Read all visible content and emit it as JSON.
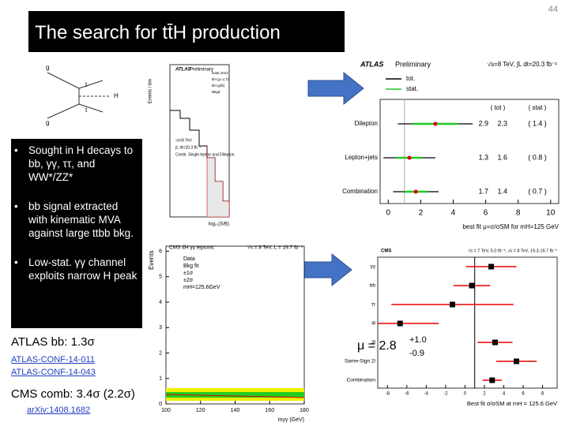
{
  "page_number": "44",
  "title": "The search for tt̄H production",
  "bullets": [
    "Sought in H decays to bb, γγ, ττ, and WW*/ZZ*",
    "bb signal extracted with kinematic MVA against large ttbb bkg.",
    "Low-stat. γγ channel exploits narrow H peak"
  ],
  "atlas_summary": {
    "label": "ATLAS bb: 1.3σ",
    "links": [
      "ATLAS-CONF-14-011",
      "ATLAS-CONF-14-043"
    ]
  },
  "cms_summary": {
    "label": "CMS comb: 3.4σ (2.2σ)",
    "link": "arXiv:1408.1682"
  },
  "mu": {
    "text": "μ = 2.8",
    "plus": "+1.0",
    "minus": "-0.9"
  },
  "feynman": {
    "labels": [
      "g",
      "g",
      "t",
      "H",
      "t"
    ]
  },
  "atlas_hist": {
    "brand": "ATLAS",
    "status": "Preliminary",
    "ylabel": "Events / bin",
    "legend": [
      "Data 2012",
      "tt̄H (μ=1.7)",
      "tt̄H (μfit)",
      "Bkgd"
    ],
    "notes": [
      "√s=8 TeV",
      "∫L dt=20.3 fb⁻¹",
      "Comb. Single lepton and Dilepton"
    ],
    "xlabel": "log₁₀(S/B)"
  },
  "cms_hist": {
    "title": "CMS tt̄H γγ leptonic",
    "energy": "√s = 8 TeV, L = 19.7 fb⁻¹",
    "ylabel": "Events",
    "legend": [
      "Data",
      "Bkg fit",
      "±1σ",
      "±2σ",
      "mH=125.6GeV"
    ],
    "xlabel": "mγγ (GeV)",
    "xlim": [
      100,
      180
    ],
    "xticks": [
      100,
      120,
      140,
      160,
      180
    ],
    "ylim": [
      0,
      6.2
    ],
    "yticks": [
      0,
      1,
      2,
      3,
      4,
      5,
      6
    ]
  },
  "atlas_plot": {
    "brand": "ATLAS",
    "status": "Preliminary",
    "energy": "√s=8 TeV, ∫L dt=20.3 fb⁻¹",
    "legend": [
      "tot.",
      "stat."
    ],
    "columns": [
      "( tot )",
      "( stat )"
    ],
    "rows": [
      {
        "name": "Dilepton",
        "mu": 2.9,
        "tot": 2.3,
        "stat": 1.4,
        "mu_label": "2.9",
        "tot_label": "2.3",
        "stat_label": "( 1.4 )"
      },
      {
        "name": "Lepton+jets",
        "mu": 1.3,
        "tot": 1.6,
        "stat": 0.8,
        "mu_label": "1.3",
        "tot_label": "1.6",
        "stat_label": "( 0.8 )"
      },
      {
        "name": "Combination",
        "mu": 1.7,
        "tot": 1.4,
        "stat": 0.7,
        "mu_label": "1.7",
        "tot_label": "1.4",
        "stat_label": "( 0.7 )"
      }
    ],
    "xlim": [
      -0.5,
      10.5
    ],
    "xticks": [
      0,
      2,
      4,
      6,
      8,
      10
    ],
    "xlabel": "best fit μ=σ/σSM for mH=125 GeV"
  },
  "cms_plot": {
    "brand": "CMS",
    "energy": "√s = 7 TeV, 5.0 fb⁻¹; √s = 8 TeV, 19.3-19.7 fb⁻¹",
    "rows": [
      {
        "name": "γγ",
        "mu": 2.7,
        "err": 2.6
      },
      {
        "name": "bb",
        "mu": 0.7,
        "err": 1.9
      },
      {
        "name": "ττ",
        "mu": -1.3,
        "err": 6.3
      },
      {
        "name": "4l",
        "mu": -6.7,
        "err": 4.0
      },
      {
        "name": "3l",
        "mu": 3.1,
        "err": 1.8
      },
      {
        "name": "Same-Sign 2l",
        "mu": 5.3,
        "err": 2.1
      },
      {
        "name": "Combination",
        "mu": 2.8,
        "err": 1.0
      }
    ],
    "xlim": [
      -9,
      9.5
    ],
    "xticks": [
      -8,
      -6,
      -4,
      -2,
      0,
      2,
      4,
      6,
      8
    ],
    "xlabel": "Best fit σ/σSM at mH = 125.6 GeV"
  }
}
